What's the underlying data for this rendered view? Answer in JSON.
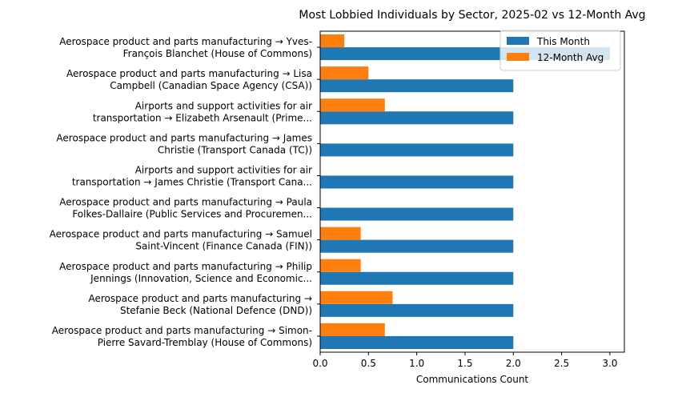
{
  "chart_data": {
    "type": "bar",
    "orientation": "horizontal",
    "title": "Most Lobbied Individuals by Sector, 2025-02 vs 12-Month Avg",
    "xlabel": "Communications Count",
    "ylabel": "",
    "xlim": [
      0,
      3.15
    ],
    "xticks": [
      "0.0",
      "0.5",
      "1.0",
      "1.5",
      "2.0",
      "2.5",
      "3.0"
    ],
    "grid": false,
    "legend_position": "top-right",
    "categories": [
      [
        "Aerospace product and parts manufacturing → Yves-",
        "François Blanchet (House of Commons)"
      ],
      [
        "Aerospace product and parts manufacturing → Lisa",
        "Campbell (Canadian Space Agency (CSA))"
      ],
      [
        "Airports and support activities for air",
        "transportation → Elizabeth Arsenault (Prime..."
      ],
      [
        "Aerospace product and parts manufacturing → James",
        "Christie (Transport Canada (TC))"
      ],
      [
        "Airports and support activities for air",
        "transportation → James Christie (Transport Cana..."
      ],
      [
        "Aerospace product and parts manufacturing → Paula",
        "Folkes-Dallaire (Public Services and Procuremen..."
      ],
      [
        "Aerospace product and parts manufacturing → Samuel",
        "Saint-Vincent (Finance Canada (FIN))"
      ],
      [
        "Aerospace product and parts manufacturing → Philip",
        "Jennings (Innovation, Science and Economic..."
      ],
      [
        "Aerospace product and parts manufacturing →",
        "Stefanie Beck (National Defence (DND))"
      ],
      [
        "Aerospace product and parts manufacturing → Simon-",
        "Pierre Savard-Tremblay (House of Commons)"
      ]
    ],
    "series": [
      {
        "name": "This Month",
        "color": "#1f77b4",
        "values": [
          3,
          2,
          2,
          2,
          2,
          2,
          2,
          2,
          2,
          2
        ]
      },
      {
        "name": "12-Month Avg",
        "color": "#ff7f0e",
        "values": [
          0.25,
          0.5,
          0.67,
          0,
          0,
          0,
          0.42,
          0.42,
          0.75,
          0.67
        ]
      }
    ]
  }
}
